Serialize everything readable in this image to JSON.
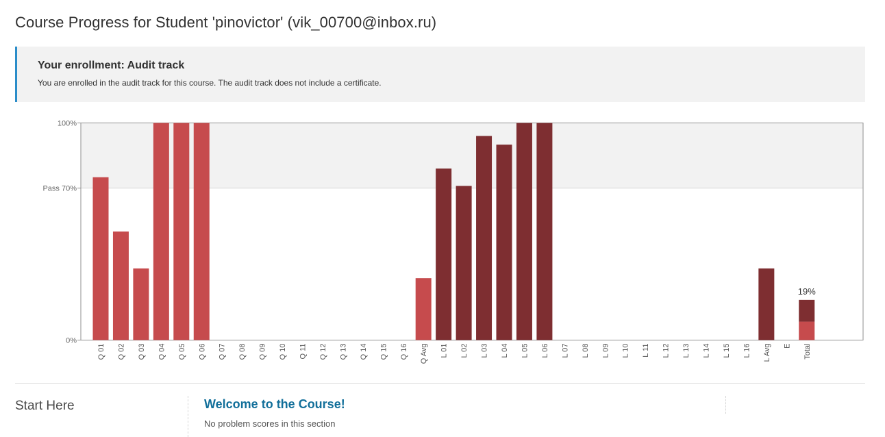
{
  "page": {
    "title": "Course Progress for Student 'pinovictor' (vik_00700@inbox.ru)"
  },
  "enrollment": {
    "title": "Your enrollment: Audit track",
    "message": "You are enrolled in the audit track for this course. The audit track does not include a certificate."
  },
  "chart_data": {
    "type": "bar",
    "categories": [
      "Q 01",
      "Q 02",
      "Q 03",
      "Q 04",
      "Q 05",
      "Q 06",
      "Q 07",
      "Q 08",
      "Q 09",
      "Q 10",
      "Q 11",
      "Q 12",
      "Q 13",
      "Q 14",
      "Q 15",
      "Q 16",
      "Q Avg",
      "L 01",
      "L 02",
      "L 03",
      "L 04",
      "L 05",
      "L 06",
      "L 07",
      "L 08",
      "L 09",
      "L 10",
      "L 11",
      "L 12",
      "L 13",
      "L 14",
      "L 15",
      "L 16",
      "L Avg",
      "E",
      "Total"
    ],
    "series": [
      {
        "group": "Q",
        "color": "#c64b4d",
        "values": [
          0.75,
          0.5,
          0.33,
          1.0,
          1.0,
          1.0,
          0,
          0,
          0,
          0,
          0,
          0,
          0,
          0,
          0,
          0,
          0.285,
          null,
          null,
          null,
          null,
          null,
          null,
          null,
          null,
          null,
          null,
          null,
          null,
          null,
          null,
          null,
          null,
          null,
          null,
          null
        ]
      },
      {
        "group": "L",
        "color": "#7e2e31",
        "values": [
          null,
          null,
          null,
          null,
          null,
          null,
          null,
          null,
          null,
          null,
          null,
          null,
          null,
          null,
          null,
          null,
          null,
          0.79,
          0.71,
          0.94,
          0.9,
          1.0,
          1.0,
          0,
          0,
          0,
          0,
          0,
          0,
          0,
          0,
          0,
          0,
          0.33,
          null,
          null
        ]
      }
    ],
    "total": {
      "label": "19%",
      "value": 0.185,
      "segments": [
        {
          "value": 0.085,
          "color": "#c64b4d"
        },
        {
          "value": 0.1,
          "color": "#7e2e31"
        }
      ]
    },
    "y_ticks": [
      {
        "value": 1.0,
        "label": "100%"
      },
      {
        "value": 0.7,
        "label": "Pass 70%"
      },
      {
        "value": 0.0,
        "label": "0%"
      }
    ],
    "ylim": [
      0,
      1
    ],
    "pass_band": [
      0.7,
      1.0
    ],
    "grid": false
  },
  "sections": [
    {
      "name": "Start Here",
      "subsection_title": "Welcome to the Course!",
      "subsection_note": "No problem scores in this section"
    }
  ]
}
